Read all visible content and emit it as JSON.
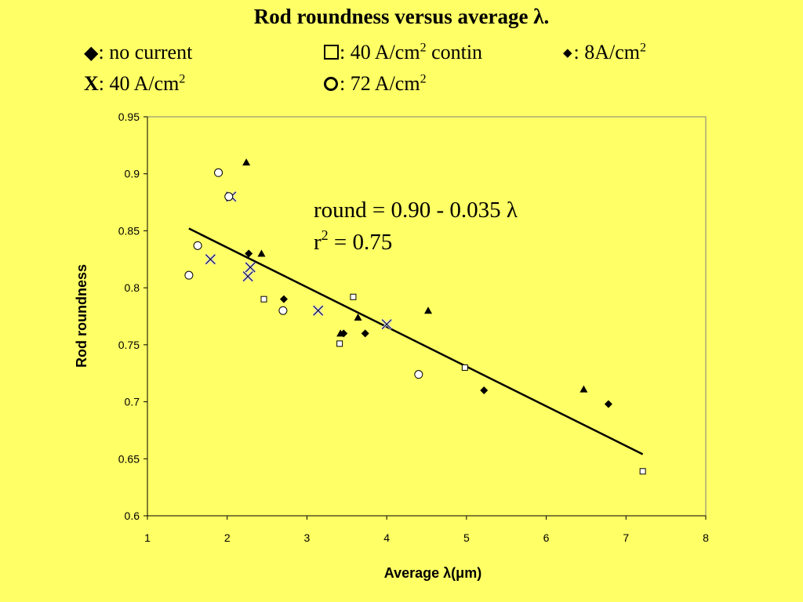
{
  "title": "Rod roundness versus average λ.",
  "legend": {
    "no_current": {
      "label": ": no current",
      "icon": "filled-diamond-icon"
    },
    "contin": {
      "label_pre": ": 40 A/cm",
      "sup": "2",
      "label_post": " contin",
      "icon": "open-square-icon"
    },
    "eight": {
      "label_pre": ": 8A/cm",
      "sup": "2",
      "icon": "small-diamond-icon"
    },
    "forty": {
      "symbol": "X",
      "label_pre": ": 40 A/cm",
      "sup": "2",
      "icon": "x-mark-icon"
    },
    "seventytwo": {
      "label_pre": ": 72 A/cm",
      "sup": "2",
      "icon": "open-circle-icon"
    }
  },
  "colors": {
    "background": "#ffff66",
    "plot_border": "#808080",
    "x_marker_fill": "#c8c8ff"
  },
  "chart_data": {
    "type": "scatter",
    "xlabel": "Average λ(μm)",
    "ylabel": "Rod roundness",
    "xlim": [
      1,
      8
    ],
    "ylim": [
      0.6,
      0.95
    ],
    "xticks": [
      "1",
      "2",
      "3",
      "4",
      "5",
      "6",
      "7",
      "8"
    ],
    "yticks": [
      "0.6",
      "0.65",
      "0.7",
      "0.75",
      "0.8",
      "0.85",
      "0.9",
      "0.95"
    ],
    "grid": false,
    "series": [
      {
        "name": "no current",
        "marker": "diamond",
        "points": [
          [
            2.27,
            0.83
          ],
          [
            2.71,
            0.79
          ],
          [
            3.46,
            0.76
          ],
          [
            3.73,
            0.76
          ],
          [
            5.22,
            0.71
          ],
          [
            6.78,
            0.698
          ]
        ]
      },
      {
        "name": "40 A/cm2 contin",
        "marker": "square",
        "points": [
          [
            2.46,
            0.79
          ],
          [
            3.41,
            0.751
          ],
          [
            3.58,
            0.792
          ],
          [
            4.98,
            0.73
          ],
          [
            7.21,
            0.639
          ]
        ]
      },
      {
        "name": "8A/cm2",
        "marker": "triangle",
        "points": [
          [
            2.24,
            0.91
          ],
          [
            2.43,
            0.83
          ],
          [
            3.42,
            0.76
          ],
          [
            3.64,
            0.774
          ],
          [
            4.52,
            0.78
          ],
          [
            6.47,
            0.711
          ]
        ]
      },
      {
        "name": "40 A/cm2",
        "marker": "x",
        "points": [
          [
            1.79,
            0.825
          ],
          [
            2.05,
            0.88
          ],
          [
            2.26,
            0.81
          ],
          [
            2.29,
            0.818
          ],
          [
            3.14,
            0.78
          ],
          [
            4.0,
            0.768
          ]
        ]
      },
      {
        "name": "72 A/cm2",
        "marker": "circle",
        "points": [
          [
            1.52,
            0.811
          ],
          [
            1.63,
            0.837
          ],
          [
            1.89,
            0.901
          ],
          [
            2.02,
            0.88
          ],
          [
            2.7,
            0.78
          ],
          [
            4.4,
            0.724
          ]
        ]
      }
    ],
    "trendline": {
      "intercept": 0.9,
      "slope": -0.035,
      "x_range": [
        1.52,
        7.21
      ],
      "drawn_y_range": [
        0.852,
        0.654
      ]
    },
    "annotations": {
      "equation": "round = 0.90 - 0.035 λ",
      "r2_prefix": "r",
      "r2_sup": "2",
      "r2_suffix": " = 0.75"
    }
  }
}
